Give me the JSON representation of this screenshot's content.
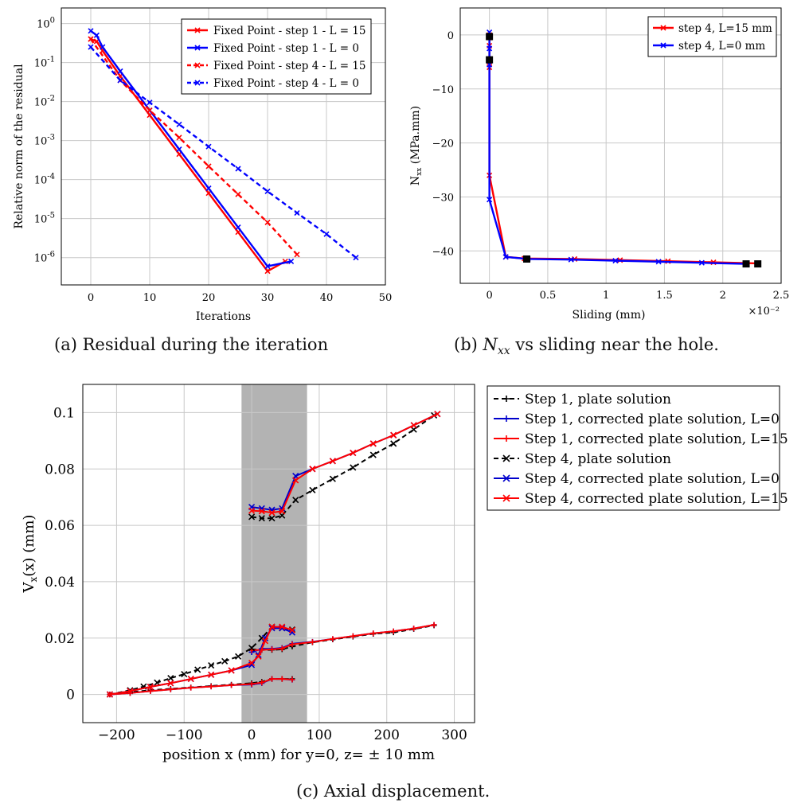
{
  "captions": {
    "a": "(a) Residual during the iteration",
    "b_prefix": "(b) ",
    "b_symbol": "N",
    "b_sub": "xx",
    "b_suffix": " vs sliding near the hole.",
    "c": "(c) Axial displacement."
  },
  "chart_data": [
    {
      "id": "a",
      "type": "line",
      "xlabel": "Iterations",
      "ylabel": "Relative norm of the residual",
      "xlim": [
        -5,
        50
      ],
      "ylim_log10": [
        -6.7,
        0.4
      ],
      "y_scale": "log",
      "grid": true,
      "legend_position": "top-right",
      "x_ticks": [
        0,
        10,
        20,
        30,
        40,
        50
      ],
      "y_ticks_exp": [
        0,
        -1,
        -2,
        -3,
        -4,
        -5,
        -6
      ],
      "series": [
        {
          "name": "Fixed Point - step 1 - L = 15",
          "color": "#ff0000",
          "dash": false,
          "x": [
            0,
            1,
            2,
            5,
            10,
            15,
            20,
            25,
            30,
            33
          ],
          "y": [
            0.4,
            0.35,
            0.2,
            0.045,
            0.0045,
            0.00045,
            4.5e-05,
            4.5e-06,
            4.5e-07,
            8e-07
          ]
        },
        {
          "name": "Fixed Point - step 1 - L = 0",
          "color": "#0000ff",
          "dash": false,
          "x": [
            0,
            1,
            2,
            5,
            10,
            15,
            20,
            25,
            30,
            34
          ],
          "y": [
            0.65,
            0.5,
            0.25,
            0.06,
            0.006,
            0.0006,
            6e-05,
            6e-06,
            6e-07,
            8e-07
          ]
        },
        {
          "name": "Fixed Point - step 4 - L = 15",
          "color": "#ff0000",
          "dash": true,
          "x": [
            0,
            5,
            10,
            15,
            20,
            25,
            30,
            35
          ],
          "y": [
            0.4,
            0.035,
            0.006,
            0.0012,
            0.00022,
            4.2e-05,
            8e-06,
            1.2e-06
          ]
        },
        {
          "name": "Fixed Point - step 4 - L = 0",
          "color": "#0000ff",
          "dash": true,
          "x": [
            0,
            5,
            10,
            15,
            20,
            25,
            30,
            35,
            40,
            45
          ],
          "y": [
            0.25,
            0.035,
            0.0095,
            0.0026,
            0.0007,
            0.00019,
            5e-05,
            1.4e-05,
            4e-06,
            1e-06
          ]
        }
      ]
    },
    {
      "id": "b",
      "type": "line",
      "xlabel": "Sliding (mm)",
      "ylabel": "Nxx (MPa.mm)",
      "ylabel_main": "N",
      "ylabel_sub": "xx",
      "ylabel_unit": " (MPa.mm)",
      "x_multiplier": "×10⁻²",
      "xlim": [
        -0.25,
        2.5
      ],
      "ylim": [
        -46,
        5
      ],
      "grid": true,
      "legend_position": "top-right",
      "x_ticks": [
        0,
        0.5,
        1,
        1.5,
        2,
        2.5
      ],
      "y_ticks": [
        0,
        -10,
        -20,
        -30,
        -40
      ],
      "series": [
        {
          "name": "step 4, L=15 mm",
          "color": "#ff0000",
          "x": [
            0,
            0,
            0,
            0,
            0,
            0,
            0.14,
            0.3,
            0.73,
            1.12,
            1.53,
            1.92,
            2.3
          ],
          "y": [
            0,
            -0.5,
            -2,
            -5,
            -6,
            -26,
            -41.1,
            -41.4,
            -41.5,
            -41.7,
            -41.9,
            -42.1,
            -42.3
          ]
        },
        {
          "name": "step 4, L=0 mm",
          "color": "#0000ff",
          "x": [
            0,
            0,
            0,
            0,
            0,
            0,
            0.14,
            0.33,
            0.7,
            1.08,
            1.45,
            1.82,
            2.2
          ],
          "y": [
            0.5,
            -0.3,
            -2.5,
            -4.5,
            -5.5,
            -30.5,
            -41.1,
            -41.5,
            -41.6,
            -41.8,
            -42.0,
            -42.2,
            -42.4
          ]
        }
      ],
      "markers": [
        {
          "x": 0,
          "y": -0.3
        },
        {
          "x": 0,
          "y": -4.6
        },
        {
          "x": 0.32,
          "y": -41.5
        },
        {
          "x": 2.2,
          "y": -42.4
        },
        {
          "x": 2.3,
          "y": -42.4
        }
      ]
    },
    {
      "id": "c",
      "type": "line",
      "xlabel": "position x (mm) for y=0, z= ± 10 mm",
      "ylabel": "Vx(x) (mm)",
      "ylabel_main": "V",
      "ylabel_sub": "x",
      "ylabel_unit": "(x)    (mm)",
      "xlim": [
        -250,
        330
      ],
      "ylim": [
        -0.01,
        0.11
      ],
      "grid": true,
      "shaded_band": [
        -15,
        82
      ],
      "legend_position": "outside-right",
      "x_ticks": [
        -200,
        -100,
        0,
        100,
        200,
        300
      ],
      "y_ticks": [
        0,
        0.02,
        0.04,
        0.06,
        0.08,
        0.1
      ],
      "series": [
        {
          "name": "Step 1, plate solution",
          "color": "#000000",
          "dash": true,
          "marker": "plus",
          "segments": [
            {
              "x": [
                -210,
                -180,
                -150,
                -120,
                -90,
                -60,
                -30,
                0,
                15,
                30,
                45,
                60
              ],
              "y": [
                0,
                0.0008,
                0.0015,
                0.002,
                0.0025,
                0.003,
                0.0035,
                0.004,
                0.0045,
                0.0055,
                0.0055,
                0.0055
              ]
            },
            {
              "x": [
                0,
                15,
                30,
                45,
                60,
                90,
                120,
                150,
                180,
                210,
                240,
                270
              ],
              "y": [
                0.016,
                0.0158,
                0.0158,
                0.016,
                0.017,
                0.0185,
                0.0195,
                0.0205,
                0.0215,
                0.022,
                0.0232,
                0.0245
              ]
            }
          ]
        },
        {
          "name": "Step 1, corrected plate solution, L=0",
          "color": "#0000cc",
          "dash": false,
          "marker": "plus",
          "segments": [
            {
              "x": [
                -210,
                -180,
                -150,
                -120,
                -90,
                -60,
                -30,
                0,
                15,
                30,
                45,
                60
              ],
              "y": [
                0,
                0.0005,
                0.0012,
                0.0018,
                0.0024,
                0.0028,
                0.0033,
                0.0035,
                0.004,
                0.0055,
                0.0055,
                0.0052
              ]
            },
            {
              "x": [
                0,
                15,
                30,
                45,
                60,
                90,
                120,
                150,
                180,
                210,
                240,
                270
              ],
              "y": [
                0.015,
                0.0162,
                0.0162,
                0.0165,
                0.018,
                0.0187,
                0.0197,
                0.0207,
                0.0217,
                0.0224,
                0.0234,
                0.0247
              ]
            }
          ]
        },
        {
          "name": "Step 1, corrected plate solution, L=15",
          "color": "#ff0000",
          "dash": false,
          "marker": "plus",
          "segments": [
            {
              "x": [
                -210,
                -180,
                -150,
                -120,
                -90,
                -60,
                -30,
                0,
                15,
                30,
                45,
                60
              ],
              "y": [
                0,
                0.0005,
                0.0012,
                0.0018,
                0.0024,
                0.0028,
                0.0033,
                0.0037,
                0.0042,
                0.0055,
                0.0055,
                0.0053
              ]
            },
            {
              "x": [
                0,
                15,
                30,
                45,
                60,
                90,
                120,
                150,
                180,
                210,
                240,
                270
              ],
              "y": [
                0.0157,
                0.0158,
                0.016,
                0.0163,
                0.0178,
                0.0186,
                0.0197,
                0.0207,
                0.0217,
                0.0224,
                0.0234,
                0.0247
              ]
            }
          ]
        },
        {
          "name": "Step 4, plate solution",
          "color": "#000000",
          "dash": true,
          "marker": "cross",
          "segments": [
            {
              "x": [
                -210,
                -180,
                -160,
                -140,
                -120,
                -100,
                -80,
                -60,
                -40,
                -20,
                0,
                15,
                30,
                45,
                60
              ],
              "y": [
                0,
                0.0015,
                0.0028,
                0.0042,
                0.0058,
                0.0072,
                0.0088,
                0.0103,
                0.0118,
                0.0135,
                0.0165,
                0.02,
                0.024,
                0.0235,
                0.023
              ]
            },
            {
              "x": [
                0,
                15,
                30,
                45,
                65,
                90,
                120,
                150,
                180,
                210,
                240,
                270
              ],
              "y": [
                0.063,
                0.0625,
                0.0625,
                0.0635,
                0.069,
                0.0725,
                0.0765,
                0.0805,
                0.085,
                0.089,
                0.094,
                0.099
              ]
            }
          ]
        },
        {
          "name": "Step 4, corrected plate solution, L=0",
          "color": "#0000cc",
          "dash": false,
          "marker": "cross",
          "segments": [
            {
              "x": [
                -210,
                -180,
                -150,
                -120,
                -90,
                -60,
                -30,
                0,
                10,
                20,
                30,
                45,
                60
              ],
              "y": [
                0,
                0.0012,
                0.0027,
                0.004,
                0.0055,
                0.007,
                0.0085,
                0.0105,
                0.014,
                0.02,
                0.0235,
                0.0235,
                0.022
              ]
            },
            {
              "x": [
                0,
                15,
                30,
                45,
                65,
                90,
                120,
                150,
                180,
                210,
                240,
                275
              ],
              "y": [
                0.0665,
                0.066,
                0.0655,
                0.066,
                0.0775,
                0.08,
                0.0828,
                0.0857,
                0.089,
                0.092,
                0.0955,
                0.0995
              ]
            }
          ]
        },
        {
          "name": "Step 4, corrected plate solution, L=15",
          "color": "#ff0000",
          "dash": false,
          "marker": "cross",
          "segments": [
            {
              "x": [
                -210,
                -180,
                -150,
                -120,
                -90,
                -60,
                -30,
                0,
                10,
                20,
                30,
                45,
                60
              ],
              "y": [
                0,
                0.0012,
                0.0027,
                0.004,
                0.0055,
                0.007,
                0.0085,
                0.0112,
                0.0135,
                0.019,
                0.024,
                0.024,
                0.0228
              ]
            },
            {
              "x": [
                0,
                15,
                30,
                45,
                65,
                90,
                120,
                150,
                180,
                210,
                240,
                275
              ],
              "y": [
                0.0652,
                0.065,
                0.0645,
                0.065,
                0.076,
                0.08,
                0.0828,
                0.0857,
                0.089,
                0.092,
                0.0955,
                0.0995
              ]
            }
          ]
        }
      ]
    }
  ]
}
